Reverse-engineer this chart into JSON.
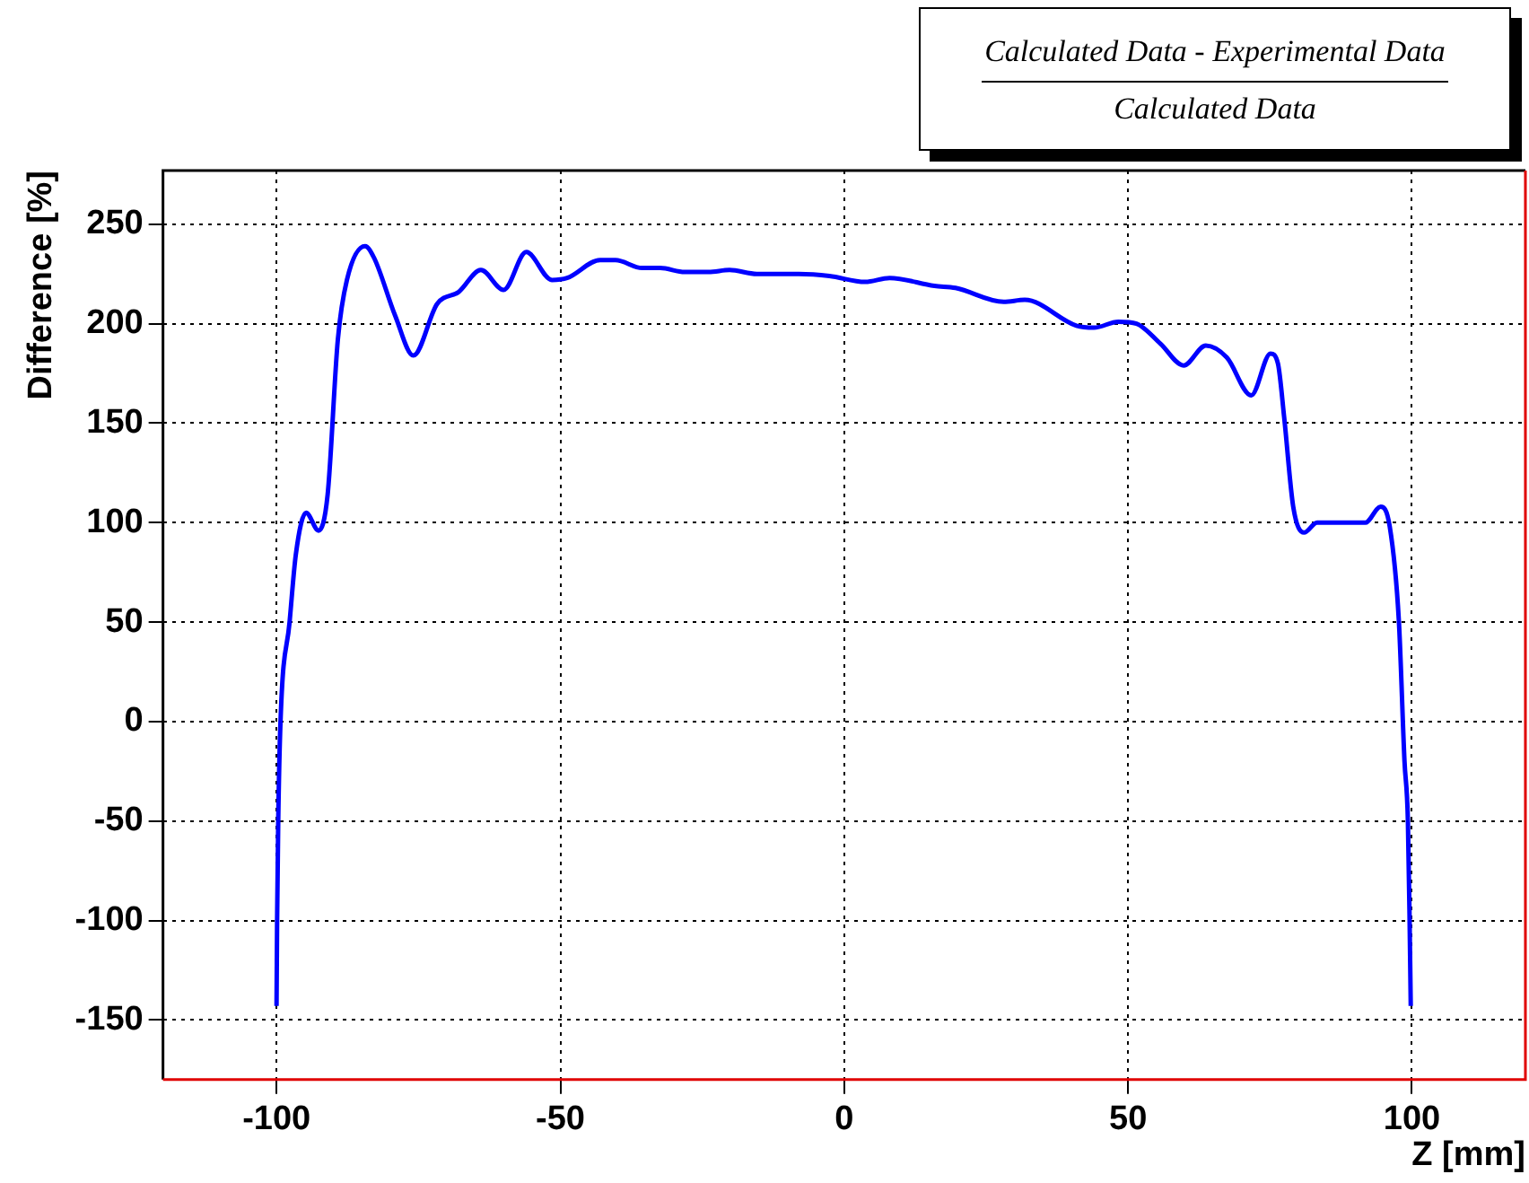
{
  "chart_data": {
    "type": "line",
    "title": "Calculated Data - Experimental Data",
    "subtitle": "Calculated Data",
    "xlabel": "Z [mm]",
    "ylabel": "Difference [%]",
    "xlim": [
      -120,
      120
    ],
    "xticks": [
      -100,
      -50,
      0,
      50,
      100
    ],
    "ylim": [
      -180,
      277
    ],
    "yticks": [
      -150,
      -100,
      -50,
      0,
      50,
      100,
      150,
      200,
      250
    ],
    "grid": true,
    "legend": false,
    "marker": "none",
    "line_style": "solid",
    "series": [
      {
        "color": "#0000ff",
        "x": [
          -100,
          -99.9,
          -99.7,
          -99.3,
          -97.7,
          -96.6,
          -94.8,
          -92.6,
          -91,
          -89.2,
          -87.6,
          -84.4,
          -82.8,
          -79.1,
          -75.9,
          -71.7,
          -67.9,
          -64,
          -60,
          -56,
          -51.5,
          -48.8,
          -43,
          -40.3,
          -35.6,
          -32.4,
          -28.1,
          -23.9,
          -20.2,
          -15.4,
          -8,
          -2.6,
          3.7,
          8,
          15.9,
          19.6,
          28.1,
          31.8,
          40.9,
          44,
          48.3,
          51.5,
          55.7,
          59.8,
          63.7,
          67.4,
          71.7,
          75.1,
          76.4,
          77.5,
          79.1,
          81,
          83.3,
          91.8,
          94.5,
          96.1,
          97.7,
          98.7,
          99.3,
          99.6,
          99.8
        ],
        "values": [
          -143,
          -100,
          -50,
          0,
          50,
          84,
          105,
          96,
          114,
          192,
          222,
          239,
          233,
          204,
          184,
          210,
          216,
          227,
          217,
          236,
          222,
          223,
          232,
          232,
          228,
          228,
          226,
          226,
          227,
          225,
          225,
          224,
          221,
          223,
          219,
          218,
          211,
          212,
          199,
          198,
          201,
          200,
          190,
          179,
          189,
          183,
          164,
          185,
          180,
          153,
          108,
          95,
          100,
          100,
          108,
          98,
          51,
          -20,
          -50,
          -100,
          -143
        ]
      }
    ]
  }
}
